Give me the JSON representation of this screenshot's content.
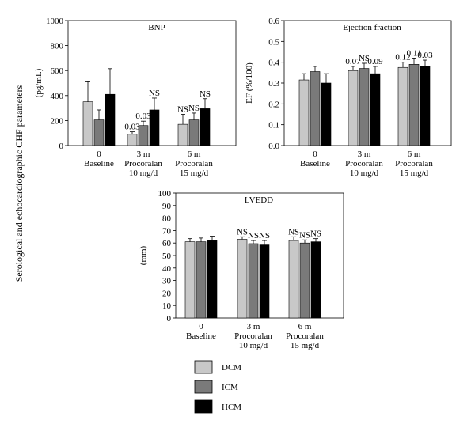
{
  "figure": {
    "shared_ylabel": "Serological and echocardiographic CHF parameters",
    "x_groups": [
      [
        "0",
        "Baseline"
      ],
      [
        "3 m",
        "Procoralan",
        "10 mg/d"
      ],
      [
        "6 m",
        "Procoralan",
        "15 mg/d"
      ]
    ]
  },
  "legend": {
    "items": [
      {
        "label": "DCM",
        "color": "#c8c8c8"
      },
      {
        "label": "ICM",
        "color": "#7a7a7a"
      },
      {
        "label": "HCM",
        "color": "#000000"
      }
    ]
  },
  "chart_data": [
    {
      "type": "bar",
      "title": "BNP",
      "ylabel": "(pg/mL)",
      "categories": [
        "0 Baseline",
        "3 m Procoralan 10 mg/d",
        "6 m Procoralan 15 mg/d"
      ],
      "ylim": [
        0,
        1000
      ],
      "yticks": [
        0,
        200,
        400,
        600,
        800,
        1000
      ],
      "tick_labels": [
        "0",
        "200",
        "400",
        "600",
        "800",
        "1000"
      ],
      "series": [
        {
          "name": "DCM",
          "values": [
            350,
            90,
            170
          ],
          "errors": [
            160,
            20,
            80
          ],
          "labels": [
            "",
            "0.03",
            "NS"
          ]
        },
        {
          "name": "ICM",
          "values": [
            205,
            160,
            205
          ],
          "errors": [
            80,
            35,
            55
          ],
          "labels": [
            "",
            "0.03",
            "NS"
          ]
        },
        {
          "name": "HCM",
          "values": [
            410,
            285,
            295
          ],
          "errors": [
            205,
            95,
            80
          ],
          "labels": [
            "",
            "NS",
            "NS"
          ]
        }
      ]
    },
    {
      "type": "bar",
      "title": "Ejection fraction",
      "ylabel": "EF (%/100)",
      "categories": [
        "0 Baseline",
        "3 m Procoralan 10 mg/d",
        "6 m Procoralan 15 mg/d"
      ],
      "ylim": [
        0,
        0.6
      ],
      "yticks": [
        0,
        0.1,
        0.2,
        0.3,
        0.4,
        0.5,
        0.6
      ],
      "tick_labels": [
        "0.0",
        "0.1",
        "0.2",
        "0.3",
        "0.4",
        "0.5",
        "0.6"
      ],
      "series": [
        {
          "name": "DCM",
          "values": [
            0.315,
            0.36,
            0.375
          ],
          "errors": [
            0.03,
            0.02,
            0.025
          ],
          "labels": [
            "",
            "0.07",
            "0.12"
          ]
        },
        {
          "name": "ICM",
          "values": [
            0.355,
            0.37,
            0.39
          ],
          "errors": [
            0.025,
            0.025,
            0.03
          ],
          "labels": [
            "",
            "NS",
            "0.11"
          ]
        },
        {
          "name": "HCM",
          "values": [
            0.3,
            0.345,
            0.38
          ],
          "errors": [
            0.045,
            0.035,
            0.03
          ],
          "labels": [
            "",
            "0.09",
            "0.03"
          ]
        }
      ]
    },
    {
      "type": "bar",
      "title": "LVEDD",
      "ylabel": "(mm)",
      "categories": [
        "0 Baseline",
        "3 m Procoralan 10 mg/d",
        "6 m Procoralan 15 mg/d"
      ],
      "ylim": [
        0,
        100
      ],
      "yticks": [
        0,
        10,
        20,
        30,
        40,
        50,
        60,
        70,
        80,
        90,
        100
      ],
      "tick_labels": [
        "0",
        "10",
        "20",
        "30",
        "40",
        "50",
        "60",
        "70",
        "80",
        "90",
        "100"
      ],
      "series": [
        {
          "name": "DCM",
          "values": [
            61,
            63,
            62
          ],
          "errors": [
            2.5,
            2,
            3
          ],
          "labels": [
            "",
            "NS",
            "NS"
          ]
        },
        {
          "name": "ICM",
          "values": [
            61,
            59.5,
            60
          ],
          "errors": [
            3,
            2.5,
            2.5
          ],
          "labels": [
            "",
            "NS",
            "NS"
          ]
        },
        {
          "name": "HCM",
          "values": [
            62,
            58.5,
            61
          ],
          "errors": [
            3.5,
            3.5,
            2.5
          ],
          "labels": [
            "",
            "NS",
            "NS"
          ]
        }
      ]
    }
  ]
}
